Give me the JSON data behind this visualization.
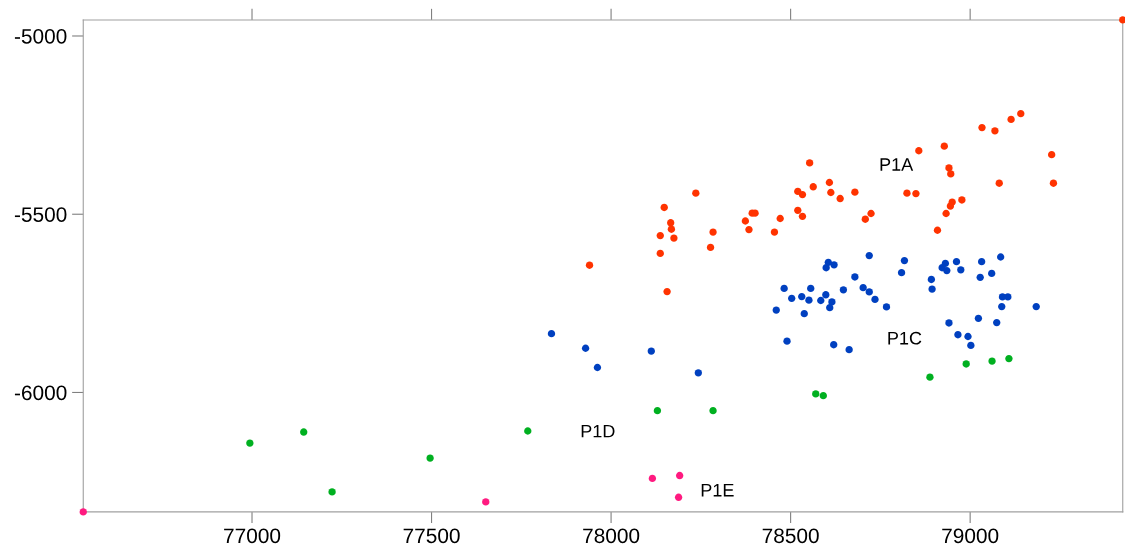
{
  "chart_data": {
    "type": "scatter",
    "xlim": [
      76530,
      79425
    ],
    "ylim": [
      -6335,
      -4955
    ],
    "xticks": [
      77000,
      77500,
      78000,
      78500,
      79000
    ],
    "yticks": [
      -6000,
      -5500,
      -5000
    ],
    "grid": false,
    "legend": false,
    "marker": "circle",
    "series": [
      {
        "name": "P1A",
        "color": "#ff3300",
        "x": [
          77940,
          78148,
          78166,
          78168,
          78137,
          78175,
          78137,
          78156,
          78236,
          78284,
          78277,
          78374,
          78384,
          78393,
          78401,
          78455,
          78471,
          78520,
          78533,
          78520,
          78533,
          78563,
          78553,
          78608,
          78612,
          78638,
          78679,
          78708,
          78724,
          78824,
          78849,
          78857,
          78928,
          78941,
          78946,
          78909,
          78933,
          78945,
          78950,
          78977,
          79033,
          79069,
          79114,
          79141,
          79081,
          79227,
          79232,
          79425
        ],
        "values": [
          -5643,
          -5481,
          -5524,
          -5542,
          -5560,
          -5567,
          -5610,
          -5717,
          -5441,
          -5550,
          -5593,
          -5519,
          -5543,
          -5497,
          -5497,
          -5550,
          -5512,
          -5489,
          -5506,
          -5436,
          -5445,
          -5423,
          -5356,
          -5411,
          -5439,
          -5456,
          -5438,
          -5514,
          -5498,
          -5441,
          -5442,
          -5322,
          -5309,
          -5370,
          -5387,
          -5545,
          -5498,
          -5477,
          -5466,
          -5460,
          -5257,
          -5266,
          -5234,
          -5218,
          -5413,
          -5333,
          -5413,
          -4955
        ]
      },
      {
        "name": "P1C",
        "color": "#0040c0",
        "x": [
          77834,
          77929,
          77962,
          78112,
          78243,
          78482,
          78503,
          78460,
          78531,
          78551,
          78556,
          78538,
          78490,
          78584,
          78598,
          78615,
          78609,
          78599,
          78605,
          78621,
          78647,
          78679,
          78719,
          78702,
          78719,
          78735,
          78767,
          78620,
          78663,
          78809,
          78817,
          78892,
          78894,
          78922,
          78931,
          78935,
          78962,
          78974,
          79032,
          79028,
          79060,
          79085,
          78941,
          78966,
          78994,
          79002,
          79023,
          79074,
          79088,
          79090,
          79105,
          79184
        ],
        "values": [
          -5835,
          -5876,
          -5930,
          -5884,
          -5945,
          -5708,
          -5736,
          -5769,
          -5731,
          -5741,
          -5708,
          -5779,
          -5856,
          -5742,
          -5726,
          -5746,
          -5762,
          -5650,
          -5635,
          -5642,
          -5712,
          -5676,
          -5616,
          -5706,
          -5718,
          -5739,
          -5760,
          -5866,
          -5880,
          -5664,
          -5630,
          -5683,
          -5710,
          -5650,
          -5638,
          -5658,
          -5633,
          -5656,
          -5633,
          -5677,
          -5666,
          -5620,
          -5805,
          -5838,
          -5843,
          -5868,
          -5792,
          -5804,
          -5759,
          -5732,
          -5732,
          -5759
        ]
      },
      {
        "name": "P1D",
        "color": "#00b020",
        "x": [
          76994,
          77144,
          77223,
          77496,
          77768,
          78129,
          78284,
          78570,
          78591,
          78888,
          78989,
          79061,
          79108
        ],
        "values": [
          -6142,
          -6111,
          -6279,
          -6184,
          -6108,
          -6051,
          -6051,
          -6004,
          -6009,
          -5957,
          -5920,
          -5912,
          -5905
        ]
      },
      {
        "name": "P1E",
        "color": "#ff1a80",
        "x": [
          76530,
          77651,
          78115,
          78191,
          78188
        ],
        "values": [
          -6335,
          -6307,
          -6241,
          -6233,
          -6294
        ]
      }
    ]
  }
}
